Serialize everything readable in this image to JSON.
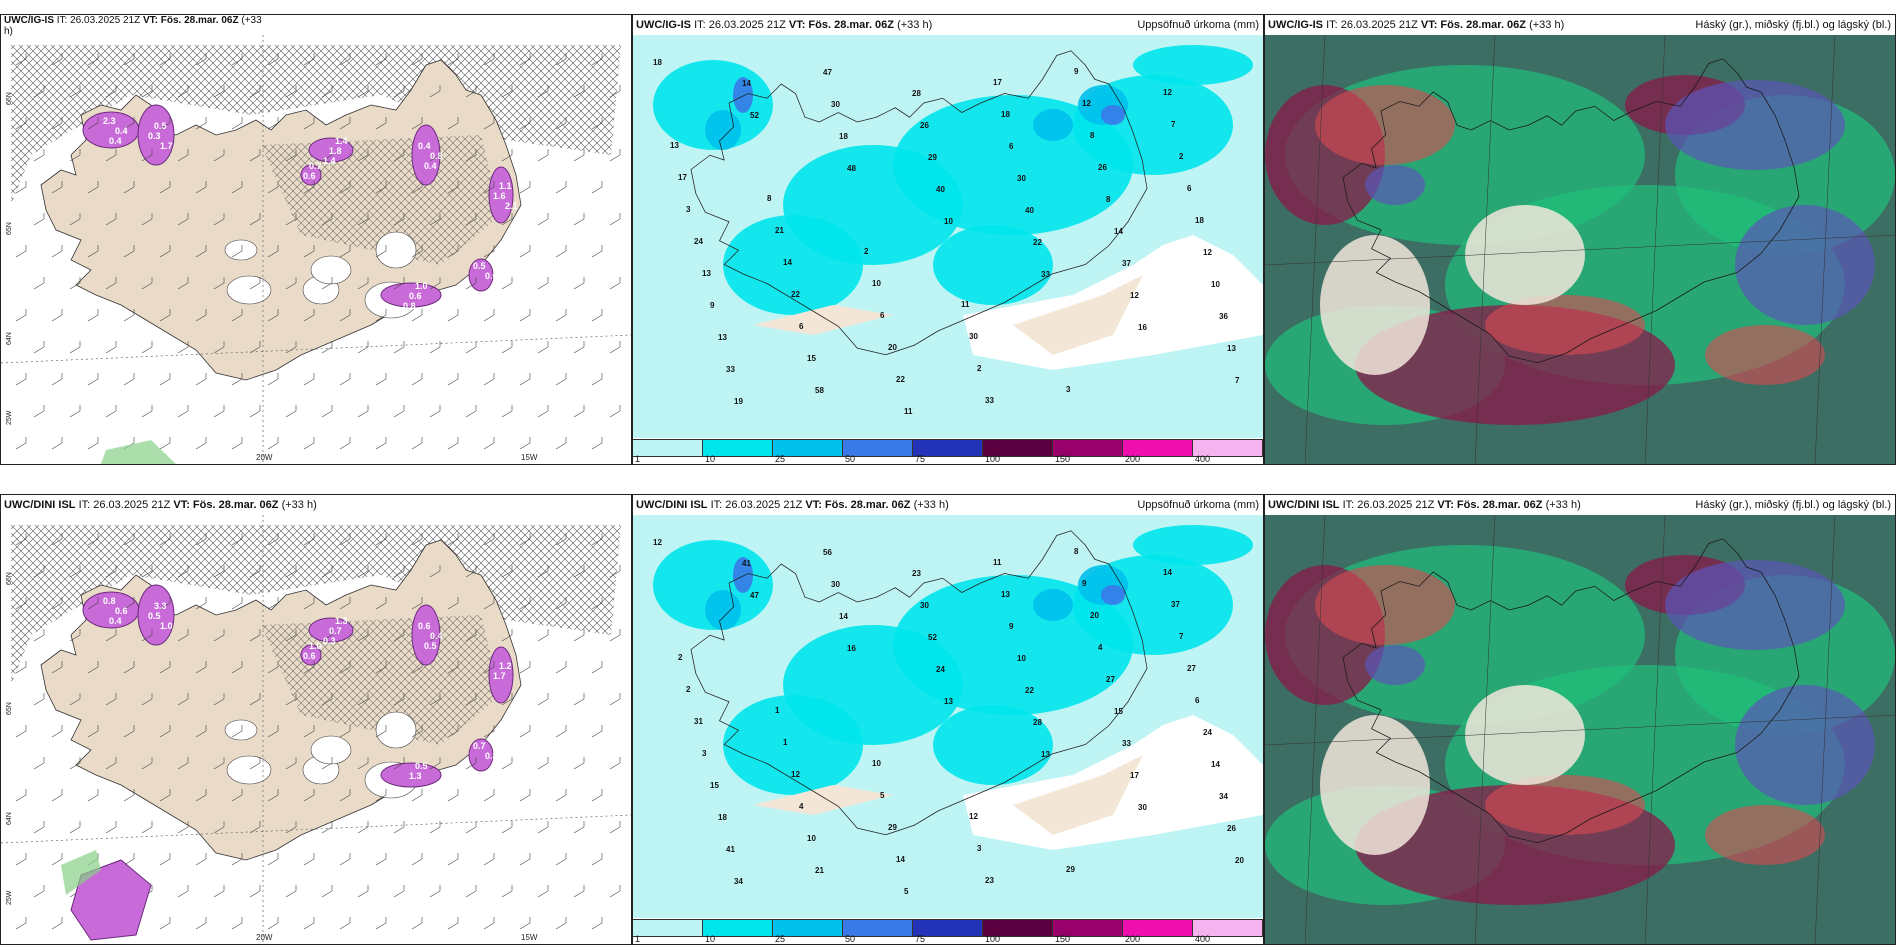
{
  "colorbar": {
    "colors": [
      "#bff4f4",
      "#00e5ec",
      "#00c0ec",
      "#3a7ae8",
      "#2233b8",
      "#5a0040",
      "#98006a",
      "#ee0fae",
      "#f5b3f0"
    ],
    "ticks": [
      "1",
      "10",
      "25",
      "50",
      "75",
      "100",
      "150",
      "200",
      "400"
    ]
  },
  "rows": [
    {
      "model": "UWC/IG-IS",
      "left_header": {
        "it": "IT: 26.03.2025 21Z",
        "vt": "VT: Fös. 28.mar. 06Z",
        "lead": "(+33",
        "lead2": "h)"
      },
      "mid_header": {
        "src": "UWC/IG-IS",
        "it": "IT: 26.03.2025 21Z",
        "vt": "VT: Fös. 28.mar. 06Z",
        "lead": "(+33 h)",
        "right": "Uppsöfnuð úrkoma (mm)"
      },
      "right_header": {
        "src": "UWC/IG-IS",
        "it": "IT: 26.03.2025 21Z",
        "vt": "VT: Fös. 28.mar. 06Z",
        "lead": "(+33 h)",
        "right": "Háský (gr.), miðský (fj.bl.) og lágský (bl.)"
      },
      "lon_labels": [
        "20W",
        "15W"
      ],
      "lat_labels": [
        "25W",
        "64N",
        "65N",
        "66N"
      ],
      "precip_values": [
        "18",
        "52",
        "48",
        "10",
        "33",
        "16",
        "7",
        "14",
        "18",
        "40",
        "22",
        "12",
        "13",
        "19",
        "30",
        "29",
        "40",
        "37",
        "36",
        "33",
        "47",
        "26",
        "30",
        "14",
        "10",
        "13",
        "58",
        "28",
        "6",
        "8",
        "12",
        "9",
        "15",
        "11",
        "18",
        "26",
        "18",
        "13",
        "6",
        "22",
        "17",
        "8",
        "6",
        "24",
        "22",
        "20",
        "33",
        "12",
        "2",
        "3",
        "14",
        "6",
        "2",
        "9",
        "7",
        "17",
        "21",
        "10",
        "30",
        "3",
        "12",
        "13",
        "8",
        "2",
        "11"
      ],
      "snow_values": [
        "2.3",
        "0.5",
        "1.4",
        "0.4",
        "1.1",
        "1.0",
        "0.5",
        "0.7",
        "0.4",
        "0.3",
        "1.8",
        "0.8",
        "1.6",
        "0.6",
        "0.6",
        "0.6",
        "0.4",
        "1.7",
        "1.4",
        "0.4",
        "2.1",
        "0.8"
      ]
    },
    {
      "model": "UWC/DINI ISL",
      "left_header": {
        "it": "IT: 26.03.2025 21Z",
        "vt": "VT: Fös. 28.mar. 06Z",
        "lead": "(+33 h)"
      },
      "mid_header": {
        "src": "UWC/DINI ISL",
        "it": "IT: 26.03.2025 21Z",
        "vt": "VT: Fös. 28.mar. 06Z",
        "lead": "(+33 h)",
        "right": "Uppsöfnuð úrkoma (mm)"
      },
      "right_header": {
        "src": "UWC/DINI ISL",
        "it": "IT: 26.03.2025 21Z",
        "vt": "VT: Fös. 28.mar. 06Z",
        "lead": "(+33 h)",
        "right": "Háský (gr.), miðský (fj.bl.) og lágský (bl.)"
      },
      "lon_labels": [
        "20W",
        "15W"
      ],
      "lat_labels": [
        "25W",
        "64N",
        "65N",
        "66N"
      ],
      "precip_values": [
        "12",
        "47",
        "16",
        "13",
        "13",
        "30",
        "20",
        "41",
        "14",
        "24",
        "28",
        "17",
        "26",
        "34",
        "30",
        "52",
        "22",
        "33",
        "34",
        "41",
        "56",
        "30",
        "10",
        "15",
        "14",
        "18",
        "21",
        "23",
        "9",
        "27",
        "24",
        "15",
        "10",
        "5",
        "13",
        "4",
        "6",
        "3",
        "4",
        "14",
        "11",
        "20",
        "27",
        "31",
        "12",
        "29",
        "23",
        "9",
        "7",
        "2",
        "1",
        "5",
        "3",
        "8",
        "37",
        "2",
        "1",
        "10",
        "12",
        "29",
        "14"
      ],
      "snow_values": [
        "0.8",
        "3.3",
        "1.3",
        "0.6",
        "1.2",
        "0.5",
        "0.7",
        "1.0",
        "0.6",
        "0.5",
        "0.7",
        "0.4",
        "1.7",
        "1.3",
        "0.8",
        "0.6",
        "0.4",
        "1.0",
        "0.3",
        "0.5"
      ]
    }
  ]
}
